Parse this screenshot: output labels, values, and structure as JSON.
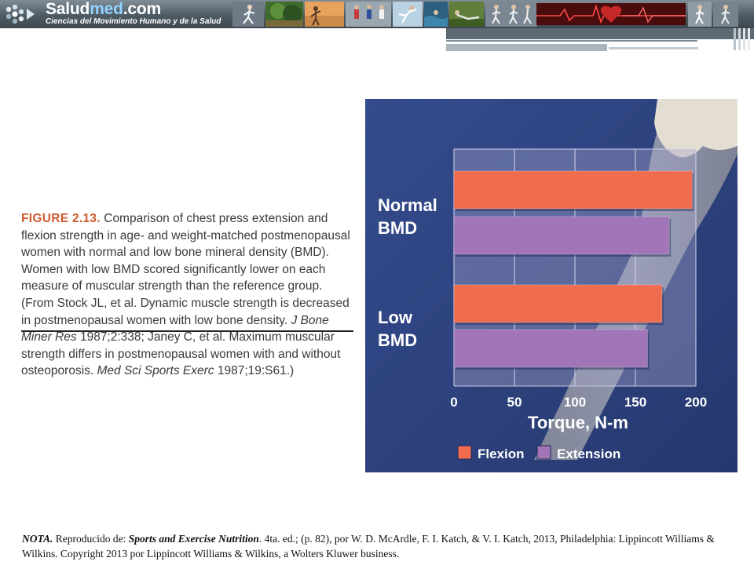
{
  "banner": {
    "brand_prefix": "Salud",
    "brand_accent": "med",
    "brand_suffix": ".com",
    "tagline": "Ciencias del Movimiento Humano y de la Salud",
    "accent_color": "#8fd3ff"
  },
  "caption": {
    "figure_label": "FIGURE 2.13.",
    "text_1": " Comparison of chest press extension and flexion strength in age- and weight-matched postmenopausal women with normal and low bone mineral density (BMD). Women with low BMD scored significantly lower on each measure of muscular strength than the reference group. (From Stock JL, et al. Dynamic muscle strength is decreased in postmenopausal women with low bone density. ",
    "journal_1": "J Bone Miner Res",
    "text_2": " 1987;2:338; Janey C, et al. Maximum muscular strength differs in postmenopausal women with and without osteoporosis. ",
    "journal_2": "Med Sci Sports Exerc",
    "text_3": " 1987;19:S61.)"
  },
  "chart_data": {
    "type": "bar",
    "orientation": "horizontal",
    "categories": [
      "Normal BMD",
      "Low BMD"
    ],
    "category_labels": [
      [
        "Normal",
        "BMD"
      ],
      [
        "Low",
        "BMD"
      ]
    ],
    "series": [
      {
        "name": "Flexion",
        "color": "#ef6c4e",
        "values": [
          197,
          172
        ]
      },
      {
        "name": "Extension",
        "color": "#a274b8",
        "values": [
          178,
          160
        ]
      }
    ],
    "xlabel": "Torque, N-m",
    "xlim": [
      0,
      200
    ],
    "xticks": [
      0,
      50,
      100,
      150,
      200
    ],
    "grid": true,
    "legend_position": "bottom",
    "background_color": "#2c3f7e"
  },
  "note": {
    "label": "NOTA.",
    "text_1": " Reproducido de: ",
    "book": "Sports and Exercise Nutrition",
    "text_2": ". 4ta. ed.; (p. 82), por W. D. McArdle, F. I. Katch, & V. I. Katch, 2013, Philadelphia: Lippincott Williams  & Wilkins. Copyright 2013 por Lippincott Williams  & Wilkins, a Wolters Kluwer business."
  }
}
